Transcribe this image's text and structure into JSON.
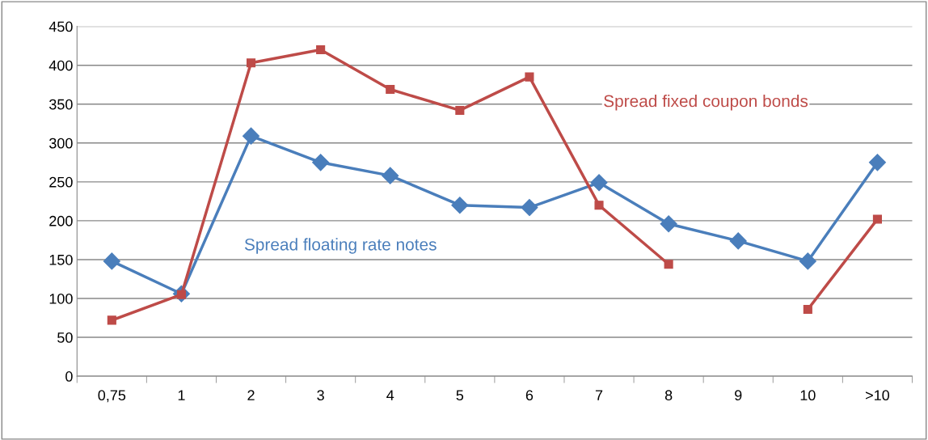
{
  "chart_data": {
    "type": "line",
    "categories": [
      "0,75",
      "1",
      "2",
      "3",
      "4",
      "5",
      "6",
      "7",
      "8",
      "9",
      "10",
      ">10"
    ],
    "ylim": [
      0,
      450
    ],
    "yticks": [
      0,
      50,
      100,
      150,
      200,
      250,
      300,
      350,
      400,
      450
    ],
    "grid": "y",
    "legend": false,
    "series": [
      {
        "name": "Spread floating rate notes",
        "color": "#4a7ebb",
        "marker": "diamond",
        "values": [
          148,
          106,
          309,
          275,
          258,
          220,
          217,
          249,
          196,
          174,
          148,
          275
        ]
      },
      {
        "name": "Spread fixed coupon bonds",
        "color": "#be4b48",
        "marker": "square",
        "values": [
          72,
          105,
          403,
          420,
          369,
          342,
          385,
          220,
          144,
          null,
          86,
          202
        ]
      }
    ]
  }
}
